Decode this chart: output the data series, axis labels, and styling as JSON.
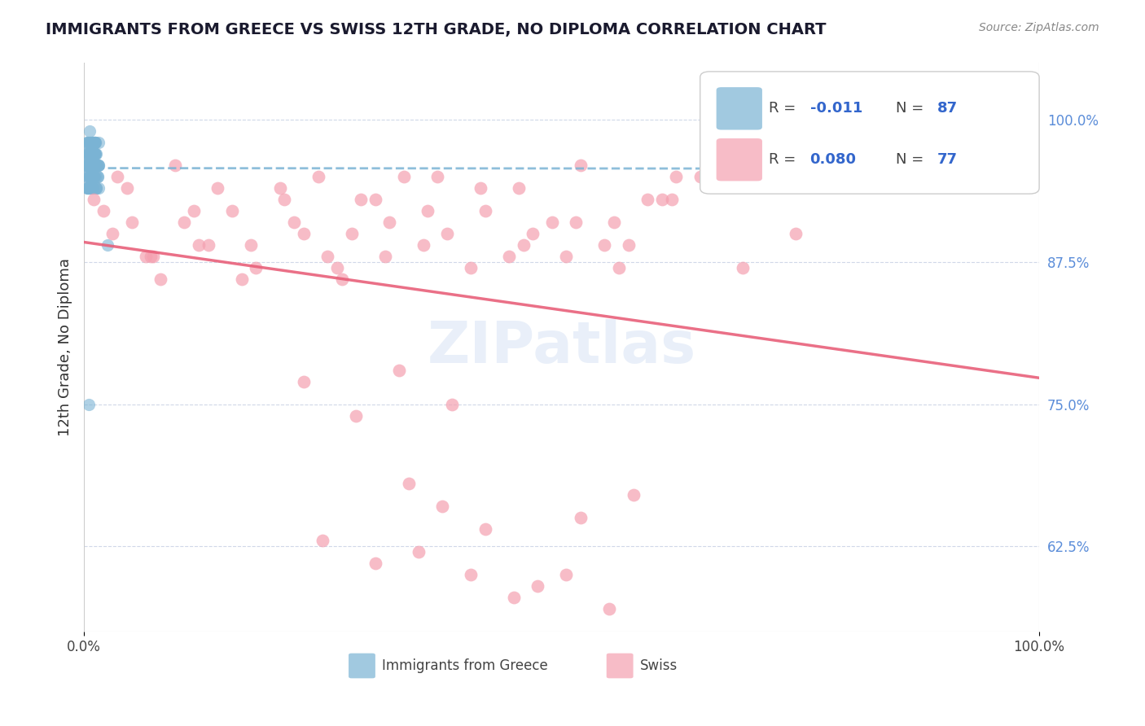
{
  "title": "IMMIGRANTS FROM GREECE VS SWISS 12TH GRADE, NO DIPLOMA CORRELATION CHART",
  "source": "Source: ZipAtlas.com",
  "ylabel": "12th Grade, No Diploma",
  "y_ticks_right": [
    62.5,
    75.0,
    87.5,
    100.0
  ],
  "y_tick_labels_right": [
    "62.5%",
    "75.0%",
    "87.5%",
    "100.0%"
  ],
  "ylim": [
    55.0,
    105.0
  ],
  "xlim": [
    0.0,
    100.0
  ],
  "greece_R": "-0.011",
  "greece_N": "87",
  "swiss_R": "0.080",
  "swiss_N": "77",
  "greece_color": "#7ab3d4",
  "swiss_color": "#f4a0b0",
  "greece_trend_color": "#7ab3d4",
  "swiss_trend_color": "#e8607a",
  "background_color": "#ffffff",
  "grid_color": "#d0d8e8",
  "greece_scatter_x": [
    0.5,
    0.8,
    1.0,
    1.2,
    1.5,
    0.3,
    0.6,
    0.9,
    1.1,
    1.4,
    0.4,
    0.7,
    1.3,
    0.2,
    0.5,
    0.8,
    1.0,
    0.3,
    0.6,
    1.2,
    0.4,
    0.9,
    1.5,
    0.7,
    1.1,
    0.2,
    0.5,
    0.8,
    1.3,
    0.6,
    1.0,
    0.4,
    0.7,
    1.2,
    0.3,
    0.9,
    1.4,
    0.5,
    0.8,
    1.1,
    0.2,
    0.6,
    1.3,
    0.4,
    0.7,
    1.0,
    1.5,
    0.3,
    0.9,
    1.2,
    0.5,
    0.8,
    1.4,
    0.6,
    1.1,
    0.2,
    0.4,
    0.7,
    1.3,
    0.9,
    0.5,
    0.8,
    1.0,
    0.3,
    0.6,
    1.2,
    0.4,
    0.7,
    1.5,
    0.9,
    1.1,
    0.2,
    0.5,
    0.8,
    1.3,
    0.6,
    1.0,
    0.4,
    0.7,
    1.2,
    2.5,
    0.3,
    0.9,
    1.4,
    0.5,
    0.8,
    1.1
  ],
  "greece_scatter_y": [
    96,
    97,
    95,
    98,
    96,
    94,
    99,
    97,
    95,
    96,
    98,
    97,
    96,
    95,
    94,
    98,
    97,
    96,
    95,
    97,
    94,
    96,
    98,
    95,
    97,
    96,
    94,
    98,
    97,
    96,
    95,
    97,
    94,
    96,
    98,
    97,
    95,
    96,
    94,
    98,
    97,
    96,
    95,
    94,
    98,
    97,
    96,
    95,
    94,
    98,
    97,
    96,
    95,
    94,
    98,
    97,
    96,
    95,
    94,
    98,
    97,
    96,
    95,
    94,
    98,
    97,
    96,
    95,
    94,
    98,
    97,
    96,
    75,
    95,
    94,
    98,
    97,
    96,
    95,
    94,
    89,
    98,
    97,
    96,
    95,
    94,
    98
  ],
  "swiss_scatter_x": [
    1.0,
    3.5,
    5.0,
    7.2,
    9.5,
    12.0,
    15.5,
    18.0,
    20.5,
    23.0,
    25.5,
    27.0,
    30.5,
    32.0,
    35.5,
    37.0,
    40.5,
    42.0,
    45.5,
    47.0,
    50.5,
    52.0,
    55.5,
    57.0,
    60.5,
    62.0,
    3.0,
    6.5,
    8.0,
    11.5,
    14.0,
    17.5,
    22.0,
    26.5,
    29.0,
    33.5,
    38.0,
    44.5,
    49.0,
    54.5,
    59.0,
    64.5,
    69.0,
    74.5,
    2.0,
    4.5,
    7.0,
    10.5,
    13.0,
    16.5,
    21.0,
    24.5,
    28.0,
    31.5,
    36.0,
    41.5,
    46.0,
    51.5,
    56.0,
    61.5,
    34.0,
    37.5,
    42.0,
    47.5,
    52.0,
    57.5,
    23.0,
    28.5,
    33.0,
    38.5,
    25.0,
    30.5,
    35.0,
    40.5,
    45.0,
    50.5,
    55.0
  ],
  "swiss_scatter_y": [
    93,
    95,
    91,
    88,
    96,
    89,
    92,
    87,
    94,
    90,
    88,
    86,
    93,
    91,
    89,
    95,
    87,
    92,
    94,
    90,
    88,
    96,
    91,
    89,
    93,
    95,
    90,
    88,
    86,
    92,
    94,
    89,
    91,
    87,
    93,
    95,
    90,
    88,
    91,
    89,
    93,
    95,
    87,
    90,
    92,
    94,
    88,
    91,
    89,
    86,
    93,
    95,
    90,
    88,
    92,
    94,
    89,
    91,
    87,
    93,
    68,
    66,
    64,
    59,
    65,
    67,
    77,
    74,
    78,
    75,
    63,
    61,
    62,
    60,
    58,
    60,
    57
  ]
}
